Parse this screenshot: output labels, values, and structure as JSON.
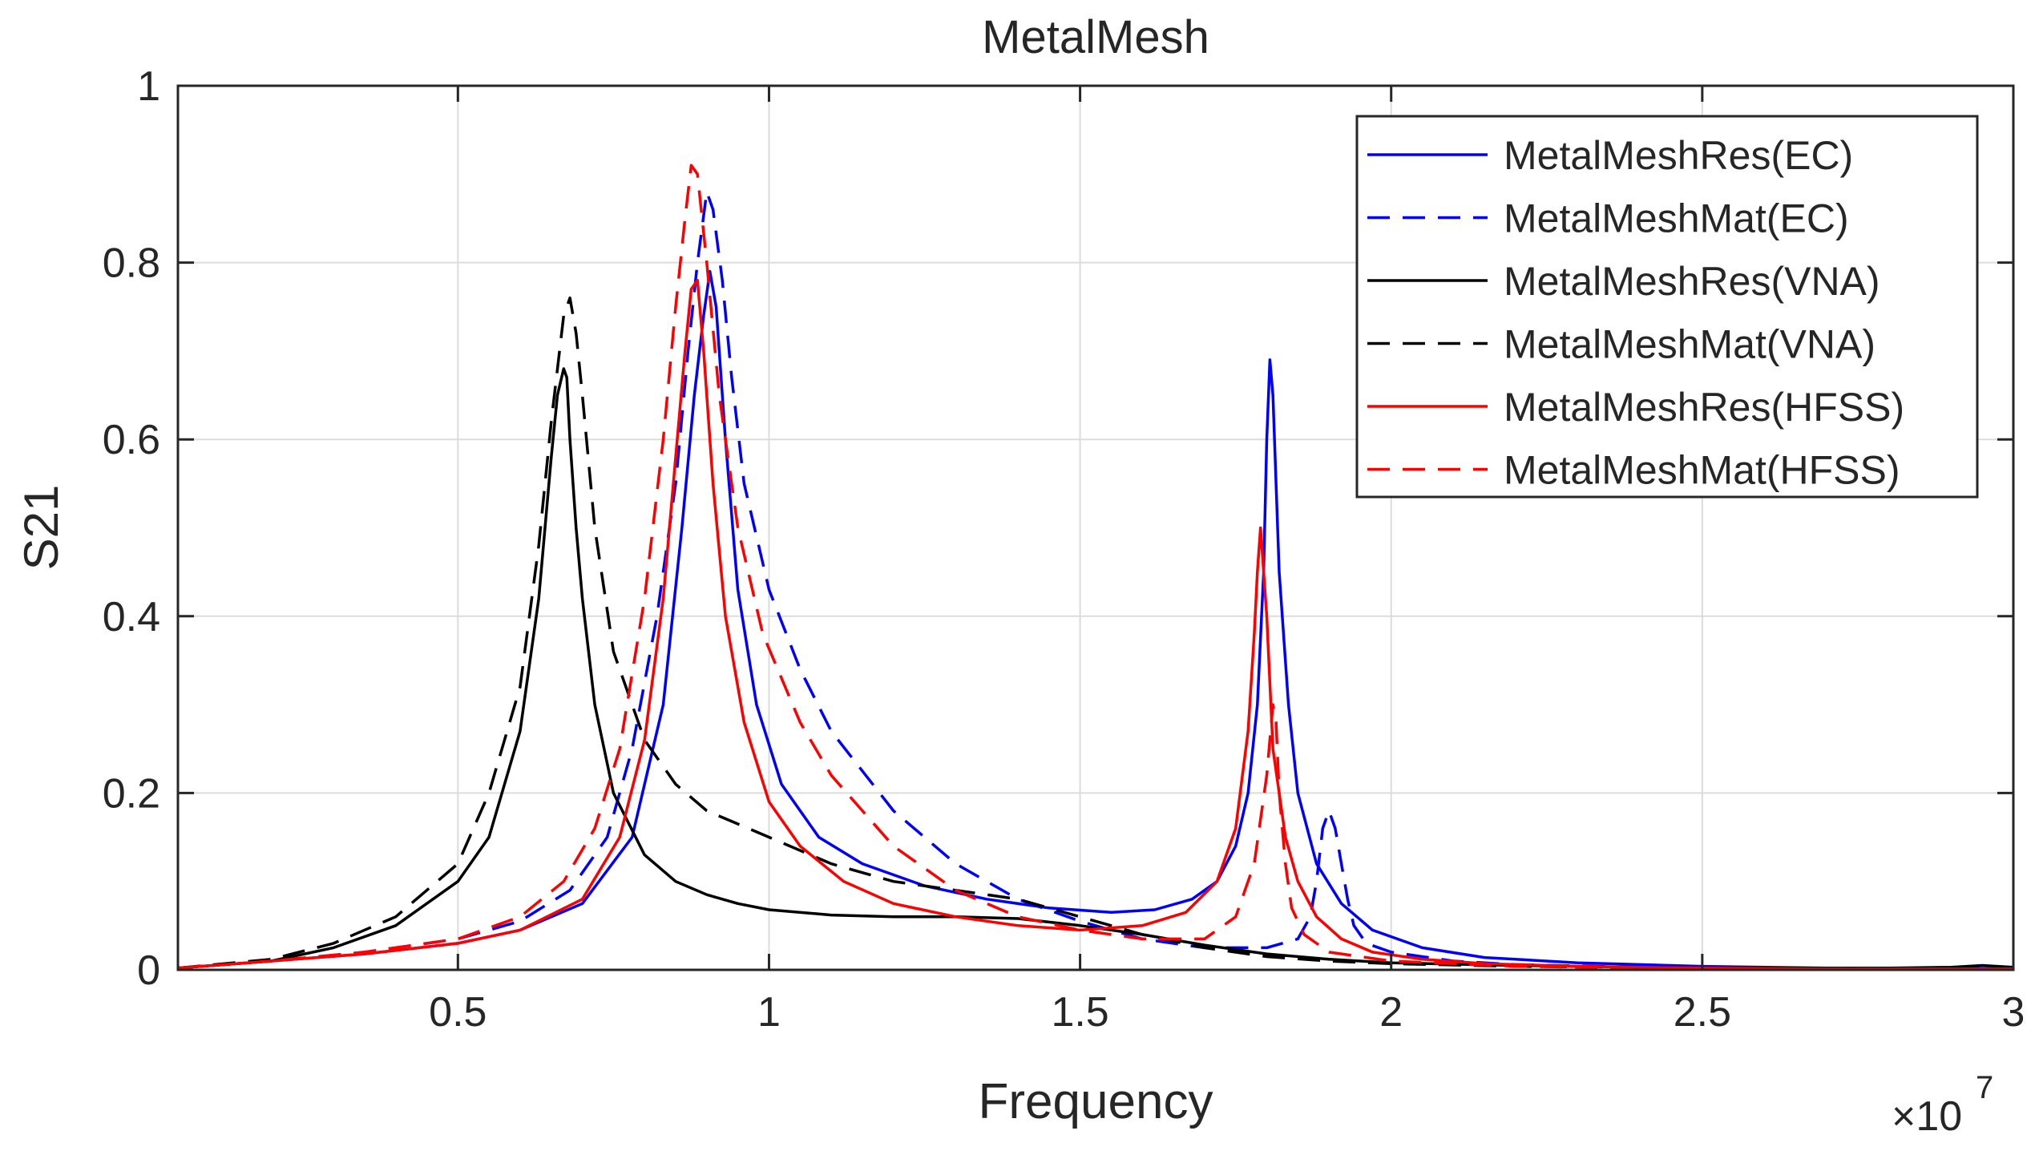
{
  "chart_data": {
    "type": "line",
    "title": "MetalMesh",
    "xlabel": "Frequency",
    "ylabel": "S21",
    "x_exponent_label": "×10",
    "x_exponent_power": "7",
    "xlim": [
      0.05,
      3.0
    ],
    "ylim": [
      0,
      1
    ],
    "x_scale_note": "x values in units of 1e7 Hz",
    "x_ticks": [
      0.5,
      1,
      1.5,
      2,
      2.5,
      3
    ],
    "x_tick_labels": [
      "0.5",
      "1",
      "1.5",
      "2",
      "2.5",
      "3"
    ],
    "y_ticks": [
      0,
      0.2,
      0.4,
      0.6,
      0.8,
      1
    ],
    "y_tick_labels": [
      "0",
      "0.2",
      "0.4",
      "0.6",
      "0.8",
      "1"
    ],
    "grid": true,
    "legend_position": "top-right",
    "series": [
      {
        "name": "MetalMeshRes(EC)",
        "color": "#0000ff",
        "dash": "solid",
        "x": [
          0.05,
          0.2,
          0.35,
          0.5,
          0.6,
          0.7,
          0.78,
          0.83,
          0.86,
          0.88,
          0.895,
          0.905,
          0.915,
          0.93,
          0.95,
          0.98,
          1.02,
          1.08,
          1.15,
          1.25,
          1.35,
          1.45,
          1.55,
          1.62,
          1.68,
          1.72,
          1.75,
          1.77,
          1.785,
          1.795,
          1.8,
          1.805,
          1.81,
          1.82,
          1.835,
          1.85,
          1.88,
          1.92,
          1.97,
          2.05,
          2.15,
          2.3,
          2.5,
          2.7,
          2.9,
          3.0
        ],
        "y": [
          0.002,
          0.01,
          0.018,
          0.03,
          0.045,
          0.075,
          0.15,
          0.3,
          0.5,
          0.65,
          0.74,
          0.79,
          0.75,
          0.6,
          0.43,
          0.3,
          0.21,
          0.15,
          0.12,
          0.095,
          0.08,
          0.07,
          0.065,
          0.068,
          0.08,
          0.1,
          0.14,
          0.2,
          0.3,
          0.45,
          0.6,
          0.69,
          0.65,
          0.45,
          0.3,
          0.2,
          0.12,
          0.075,
          0.045,
          0.025,
          0.014,
          0.008,
          0.004,
          0.002,
          0.002,
          0.001
        ]
      },
      {
        "name": "MetalMeshMat(EC)",
        "color": "#0000ff",
        "dash": "dashed",
        "x": [
          0.05,
          0.2,
          0.35,
          0.5,
          0.6,
          0.68,
          0.74,
          0.78,
          0.82,
          0.85,
          0.87,
          0.885,
          0.9,
          0.91,
          0.925,
          0.94,
          0.96,
          1.0,
          1.05,
          1.1,
          1.2,
          1.3,
          1.4,
          1.5,
          1.6,
          1.7,
          1.8,
          1.85,
          1.87,
          1.88,
          1.89,
          1.9,
          1.91,
          1.92,
          1.93,
          1.94,
          1.96,
          2.0,
          2.1,
          2.2,
          2.4,
          2.6,
          2.8,
          3.0
        ],
        "y": [
          0.002,
          0.01,
          0.02,
          0.035,
          0.055,
          0.09,
          0.15,
          0.25,
          0.4,
          0.55,
          0.7,
          0.8,
          0.88,
          0.86,
          0.78,
          0.67,
          0.55,
          0.43,
          0.34,
          0.27,
          0.18,
          0.12,
          0.08,
          0.055,
          0.035,
          0.025,
          0.025,
          0.035,
          0.06,
          0.1,
          0.16,
          0.18,
          0.16,
          0.12,
          0.08,
          0.05,
          0.03,
          0.02,
          0.01,
          0.006,
          0.003,
          0.002,
          0.001,
          0.001
        ]
      },
      {
        "name": "MetalMeshRes(VNA)",
        "color": "#000000",
        "dash": "solid",
        "x": [
          0.05,
          0.2,
          0.3,
          0.4,
          0.5,
          0.55,
          0.6,
          0.63,
          0.65,
          0.66,
          0.67,
          0.675,
          0.68,
          0.69,
          0.7,
          0.72,
          0.75,
          0.8,
          0.85,
          0.9,
          0.95,
          1.0,
          1.1,
          1.2,
          1.3,
          1.4,
          1.5,
          1.6,
          1.7,
          1.8,
          1.9,
          2.0,
          2.2,
          2.4,
          2.6,
          2.8,
          2.9,
          2.95,
          3.0
        ],
        "y": [
          0.002,
          0.01,
          0.025,
          0.05,
          0.1,
          0.15,
          0.27,
          0.42,
          0.58,
          0.65,
          0.68,
          0.67,
          0.6,
          0.5,
          0.42,
          0.3,
          0.2,
          0.13,
          0.1,
          0.085,
          0.075,
          0.068,
          0.062,
          0.06,
          0.06,
          0.058,
          0.05,
          0.04,
          0.028,
          0.018,
          0.012,
          0.008,
          0.005,
          0.003,
          0.002,
          0.002,
          0.003,
          0.005,
          0.003
        ]
      },
      {
        "name": "MetalMeshMat(VNA)",
        "color": "#000000",
        "dash": "dashed",
        "x": [
          0.05,
          0.2,
          0.3,
          0.4,
          0.5,
          0.55,
          0.6,
          0.63,
          0.65,
          0.67,
          0.68,
          0.69,
          0.7,
          0.72,
          0.75,
          0.8,
          0.85,
          0.9,
          1.0,
          1.1,
          1.2,
          1.3,
          1.4,
          1.5,
          1.6,
          1.7,
          1.8,
          1.9,
          2.0,
          2.2,
          2.4,
          2.6,
          2.8,
          3.0
        ],
        "y": [
          0.002,
          0.012,
          0.03,
          0.06,
          0.12,
          0.2,
          0.32,
          0.48,
          0.62,
          0.74,
          0.76,
          0.72,
          0.65,
          0.5,
          0.36,
          0.26,
          0.21,
          0.18,
          0.15,
          0.12,
          0.1,
          0.09,
          0.08,
          0.06,
          0.04,
          0.025,
          0.015,
          0.01,
          0.007,
          0.004,
          0.003,
          0.002,
          0.001,
          0.001
        ]
      },
      {
        "name": "MetalMeshRes(HFSS)",
        "color": "#ff0000",
        "dash": "solid",
        "x": [
          0.05,
          0.2,
          0.35,
          0.5,
          0.6,
          0.7,
          0.76,
          0.8,
          0.83,
          0.85,
          0.865,
          0.875,
          0.885,
          0.895,
          0.91,
          0.93,
          0.96,
          1.0,
          1.05,
          1.12,
          1.2,
          1.3,
          1.4,
          1.5,
          1.6,
          1.67,
          1.72,
          1.75,
          1.77,
          1.78,
          1.785,
          1.79,
          1.8,
          1.81,
          1.83,
          1.85,
          1.88,
          1.92,
          1.97,
          2.05,
          2.15,
          2.3,
          2.5,
          2.7,
          2.9,
          3.0
        ],
        "y": [
          0.002,
          0.01,
          0.018,
          0.03,
          0.045,
          0.08,
          0.15,
          0.26,
          0.42,
          0.58,
          0.7,
          0.77,
          0.78,
          0.7,
          0.55,
          0.4,
          0.28,
          0.19,
          0.14,
          0.1,
          0.075,
          0.06,
          0.05,
          0.045,
          0.05,
          0.065,
          0.1,
          0.16,
          0.27,
          0.38,
          0.45,
          0.5,
          0.4,
          0.25,
          0.15,
          0.1,
          0.06,
          0.035,
          0.02,
          0.012,
          0.007,
          0.004,
          0.002,
          0.001,
          0.001,
          0.001
        ]
      },
      {
        "name": "MetalMeshMat(HFSS)",
        "color": "#ff0000",
        "dash": "dashed",
        "x": [
          0.05,
          0.2,
          0.35,
          0.5,
          0.6,
          0.67,
          0.72,
          0.76,
          0.8,
          0.83,
          0.85,
          0.865,
          0.875,
          0.885,
          0.9,
          0.92,
          0.95,
          0.99,
          1.05,
          1.1,
          1.2,
          1.3,
          1.4,
          1.5,
          1.6,
          1.7,
          1.75,
          1.78,
          1.8,
          1.81,
          1.815,
          1.82,
          1.83,
          1.84,
          1.86,
          1.9,
          2.0,
          2.2,
          2.4,
          2.6,
          2.8,
          3.0
        ],
        "y": [
          0.002,
          0.01,
          0.02,
          0.035,
          0.06,
          0.1,
          0.16,
          0.25,
          0.42,
          0.6,
          0.75,
          0.85,
          0.91,
          0.9,
          0.8,
          0.65,
          0.5,
          0.38,
          0.28,
          0.22,
          0.14,
          0.09,
          0.06,
          0.045,
          0.035,
          0.035,
          0.06,
          0.12,
          0.22,
          0.3,
          0.28,
          0.2,
          0.12,
          0.07,
          0.04,
          0.02,
          0.01,
          0.004,
          0.002,
          0.001,
          0.001,
          0.001
        ]
      }
    ]
  }
}
